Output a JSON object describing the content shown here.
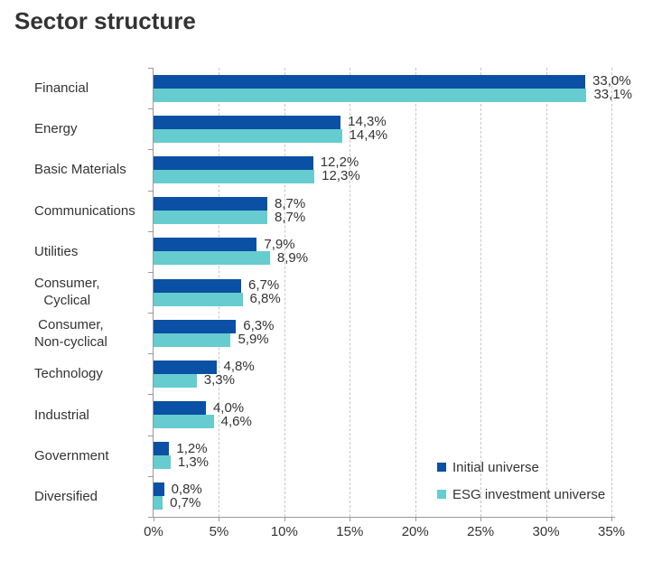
{
  "title": "Sector structure",
  "chart_data": {
    "type": "bar",
    "orientation": "horizontal",
    "title": "Sector structure",
    "categories": [
      "Financial",
      "Energy",
      "Basic Materials",
      "Communications",
      "Utilities",
      "Consumer,\nCyclical",
      "Consumer,\nNon-cyclical",
      "Technology",
      "Industrial",
      "Government",
      "Diversified"
    ],
    "series": [
      {
        "name": "Initial universe",
        "color": "#0a50a4",
        "values": [
          33.0,
          14.3,
          12.2,
          8.7,
          7.9,
          6.7,
          6.3,
          4.8,
          4.0,
          1.2,
          0.8
        ],
        "labels": [
          "33,0%",
          "14,3%",
          "12,2%",
          "8,7%",
          "7,9%",
          "6,7%",
          "6,3%",
          "4,8%",
          "4,0%",
          "1,2%",
          "0,8%"
        ]
      },
      {
        "name": "ESG investment universe",
        "color": "#66cccf",
        "values": [
          33.1,
          14.4,
          12.3,
          8.7,
          8.9,
          6.8,
          5.9,
          3.3,
          4.6,
          1.3,
          0.7
        ],
        "labels": [
          "33,1%",
          "14,4%",
          "12,3%",
          "8,7%",
          "8,9%",
          "6,8%",
          "5,9%",
          "3,3%",
          "4,6%",
          "1,3%",
          "0,7%"
        ]
      }
    ],
    "xlim": [
      0,
      35
    ],
    "x_tick_step": 5,
    "x_tick_labels": [
      "0%",
      "5%",
      "10%",
      "15%",
      "20%",
      "25%",
      "30%",
      "35%"
    ],
    "grid": "vertical-dashed",
    "legend_position": "bottom-right"
  },
  "colors": {
    "axis": "#999999",
    "gridline": "#c6c6c6",
    "text": "#333333",
    "background": "#ffffff"
  }
}
